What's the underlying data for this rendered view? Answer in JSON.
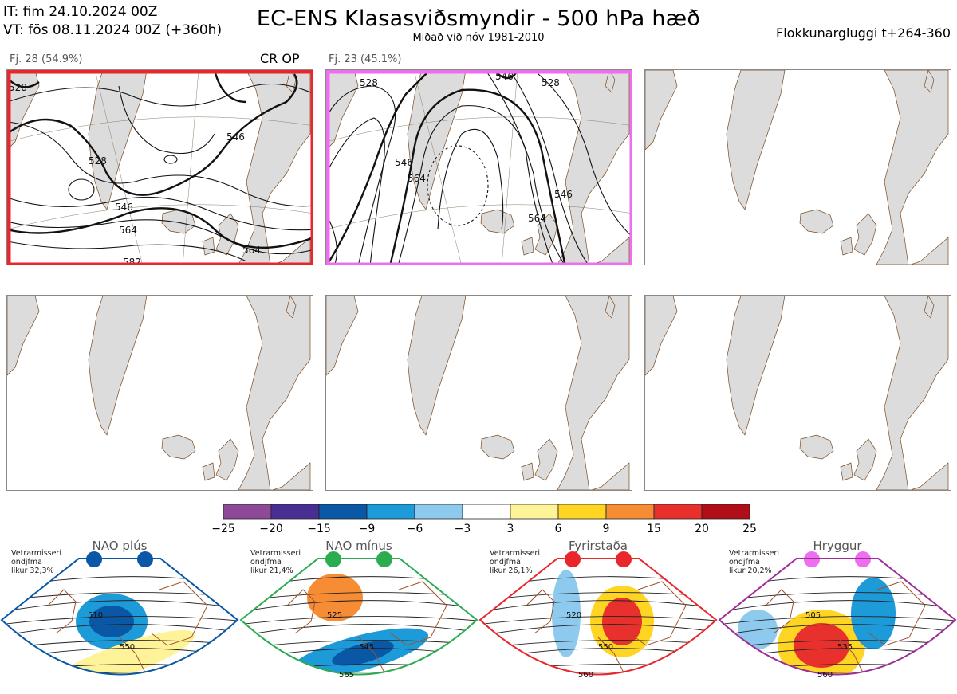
{
  "header": {
    "it": "IT: fim 24.10.2024 00Z",
    "vt": "VT: fös 08.11.2024 00Z  (+360h)",
    "title": "EC-ENS Klasasviðsmyndir - 500 hPa hæð",
    "subtitle": "Miðað við nóv 1981-2010",
    "window": "Flokkunargluggi t+264-360"
  },
  "clusters": [
    {
      "label": "Fj. 28 (54.9%)",
      "tag": "CR OP",
      "border_color": "#e8262b",
      "contour_labels": [
        "528",
        "546",
        "528",
        "546",
        "564",
        "564",
        "582"
      ]
    },
    {
      "label": "Fj. 23 (45.1%)",
      "tag": "",
      "border_color": "#ee6ef0",
      "contour_labels": [
        "528",
        "546",
        "528",
        "546",
        "564",
        "564",
        "546"
      ]
    }
  ],
  "colorbar": {
    "ticks": [
      "−25",
      "−20",
      "−15",
      "−9",
      "−6",
      "−3",
      "3",
      "6",
      "9",
      "15",
      "20",
      "25"
    ],
    "colors": [
      "#8e4a98",
      "#4a2f92",
      "#0a57a5",
      "#1d9ad8",
      "#8dcaee",
      "#ffffff",
      "#fff39a",
      "#fed523",
      "#f68d35",
      "#e8302c",
      "#b10f18"
    ]
  },
  "regimes": [
    {
      "name": "NAO plús",
      "info": [
        "Vetrarmisseri",
        "ondjfma",
        "líkur 32,3%"
      ],
      "color": "#0a57a5",
      "contour_labels": [
        "510",
        "550"
      ]
    },
    {
      "name": "NAO mínus",
      "info": [
        "Vetrarmisseri",
        "ondjfma",
        "líkur 21,4%"
      ],
      "color": "#2bac4f",
      "contour_labels": [
        "525",
        "545",
        "565"
      ]
    },
    {
      "name": "Fyrirstaða",
      "info": [
        "Vetrarmisseri",
        "ondjfma",
        "líkur 26,1%"
      ],
      "color": "#e8262b",
      "contour_labels": [
        "520",
        "550",
        "560"
      ]
    },
    {
      "name": "Hryggur",
      "info": [
        "Vetrarmisseri",
        "ondjfma",
        "líkur 20,2%"
      ],
      "color": "#9c2f96",
      "dot_color": "#ee6ef0",
      "contour_labels": [
        "505",
        "535",
        "560"
      ]
    }
  ]
}
